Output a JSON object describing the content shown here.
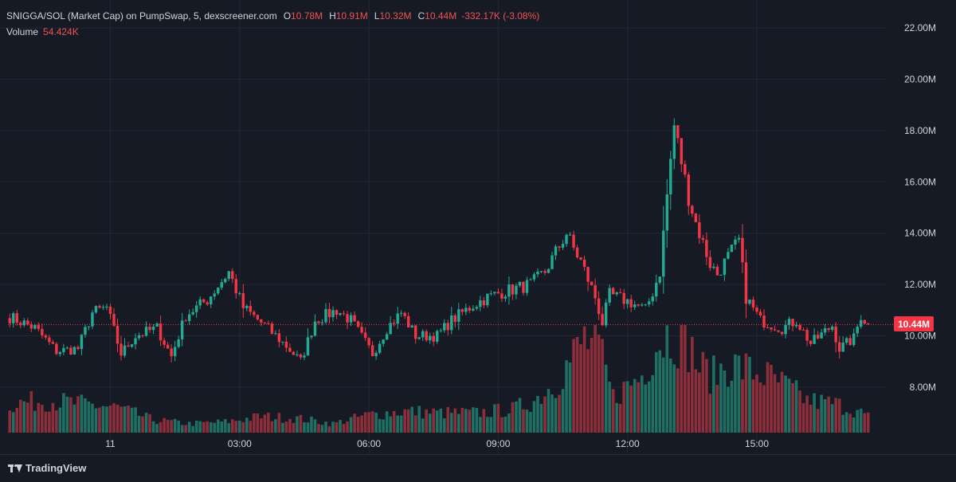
{
  "legend": {
    "title": "SNIGGA/SOL (Market Cap) on PumpSwap, 5, dexscreener.com",
    "open_key": "O",
    "open_val": "10.78M",
    "high_key": "H",
    "high_val": "10.91M",
    "low_key": "L",
    "low_val": "10.32M",
    "close_key": "C",
    "close_val": "10.44M",
    "change": "-332.17K (-3.08%)",
    "volume_label": "Volume",
    "volume_val": "54.424K"
  },
  "last_price_label": "10.44M",
  "branding": "TradingView",
  "colors": {
    "background": "#161a25",
    "grid": "#232735",
    "up": "#22ab94",
    "down": "#f23645",
    "up_volume": "#1f6f63",
    "down_volume": "#8c2f3b",
    "axis_text": "#d1d4dc"
  },
  "chart_data": {
    "type": "candlestick",
    "title": "SNIGGA/SOL (Market Cap) on PumpSwap, 5, dexscreener.com",
    "y_unit": "M",
    "ylim": [
      6.5,
      22.5
    ],
    "y_ticks": [
      8,
      10,
      12,
      14,
      16,
      18,
      20,
      22
    ],
    "y_tick_labels": [
      "8.00M",
      "10.00M",
      "12.00M",
      "14.00M",
      "16.00M",
      "18.00M",
      "20.00M",
      "22.00M"
    ],
    "x_tick_labels": [
      "11",
      "03:00",
      "06:00",
      "09:00",
      "12:00",
      "15:00"
    ],
    "x_tick_bars": [
      28,
      64,
      100,
      136,
      172,
      208
    ],
    "last_price": 10.44,
    "bars": 240,
    "close_anchors": [
      [
        0,
        10.8
      ],
      [
        8,
        10.3
      ],
      [
        14,
        9.4
      ],
      [
        20,
        9.5
      ],
      [
        24,
        10.9
      ],
      [
        28,
        11.1
      ],
      [
        32,
        9.3
      ],
      [
        36,
        10.0
      ],
      [
        42,
        10.3
      ],
      [
        46,
        9.2
      ],
      [
        50,
        10.8
      ],
      [
        56,
        11.4
      ],
      [
        62,
        12.5
      ],
      [
        66,
        11.1
      ],
      [
        72,
        10.4
      ],
      [
        78,
        9.6
      ],
      [
        82,
        9.0
      ],
      [
        86,
        10.6
      ],
      [
        92,
        11.0
      ],
      [
        96,
        10.6
      ],
      [
        102,
        9.3
      ],
      [
        106,
        10.3
      ],
      [
        110,
        10.9
      ],
      [
        114,
        10.0
      ],
      [
        120,
        10.0
      ],
      [
        124,
        10.6
      ],
      [
        130,
        11.2
      ],
      [
        134,
        11.5
      ],
      [
        138,
        11.7
      ],
      [
        146,
        12.0
      ],
      [
        150,
        12.5
      ],
      [
        156,
        14.0
      ],
      [
        158,
        13.4
      ],
      [
        160,
        12.9
      ],
      [
        164,
        11.5
      ],
      [
        166,
        10.5
      ],
      [
        168,
        11.6
      ],
      [
        174,
        11.3
      ],
      [
        178,
        11.0
      ],
      [
        180,
        11.7
      ],
      [
        182,
        12.5
      ],
      [
        184,
        15.5
      ],
      [
        186,
        18.2
      ],
      [
        188,
        16.8
      ],
      [
        190,
        15.4
      ],
      [
        192,
        14.4
      ],
      [
        196,
        12.8
      ],
      [
        198,
        12.4
      ],
      [
        202,
        13.3
      ],
      [
        204,
        13.7
      ],
      [
        206,
        11.5
      ],
      [
        210,
        10.6
      ],
      [
        216,
        10.3
      ],
      [
        220,
        10.6
      ],
      [
        224,
        9.7
      ],
      [
        230,
        10.4
      ],
      [
        232,
        9.5
      ],
      [
        236,
        9.9
      ],
      [
        238,
        10.8
      ],
      [
        240,
        10.44
      ]
    ],
    "volume_anchors": [
      [
        0,
        0.8
      ],
      [
        10,
        0.9
      ],
      [
        20,
        0.8
      ],
      [
        30,
        0.7
      ],
      [
        40,
        0.35
      ],
      [
        50,
        0.25
      ],
      [
        60,
        0.3
      ],
      [
        70,
        0.45
      ],
      [
        80,
        0.4
      ],
      [
        90,
        0.25
      ],
      [
        100,
        0.5
      ],
      [
        110,
        0.6
      ],
      [
        120,
        0.55
      ],
      [
        130,
        0.55
      ],
      [
        140,
        0.65
      ],
      [
        146,
        0.9
      ],
      [
        152,
        1.4
      ],
      [
        156,
        2.0
      ],
      [
        160,
        2.6
      ],
      [
        164,
        2.3
      ],
      [
        168,
        1.0
      ],
      [
        172,
        1.3
      ],
      [
        176,
        1.6
      ],
      [
        180,
        2.5
      ],
      [
        184,
        2.8
      ],
      [
        188,
        2.7
      ],
      [
        192,
        1.8
      ],
      [
        196,
        1.6
      ],
      [
        200,
        1.9
      ],
      [
        204,
        1.8
      ],
      [
        210,
        1.6
      ],
      [
        216,
        1.3
      ],
      [
        222,
        0.9
      ],
      [
        230,
        0.8
      ],
      [
        236,
        0.6
      ],
      [
        240,
        0.4
      ]
    ],
    "volume_scale_max": 3.0
  }
}
